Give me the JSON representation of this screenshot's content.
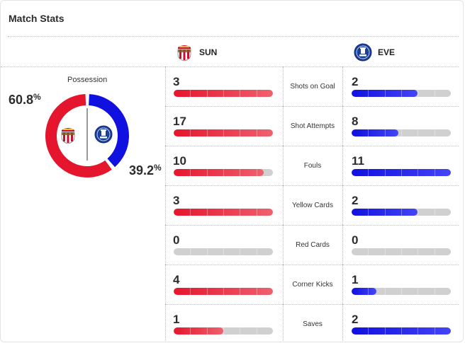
{
  "title": "Match Stats",
  "home": {
    "abbr": "SUN",
    "crest_icon": "sunderland-crest-icon",
    "possession_value": "60.8",
    "possession": 60.8,
    "color": "#e5152d"
  },
  "away": {
    "abbr": "EVE",
    "crest_icon": "everton-crest-icon",
    "possession_value": "39.2",
    "possession": 39.2,
    "color": "#1010e0"
  },
  "possession_label": "Possession",
  "percent_sign": "%",
  "stats": [
    {
      "label": "Shots on Goal",
      "home": "3",
      "away": "2",
      "home_fill": 1.0,
      "away_fill": 0.667
    },
    {
      "label": "Shot Attempts",
      "home": "17",
      "away": "8",
      "home_fill": 1.0,
      "away_fill": 0.47
    },
    {
      "label": "Fouls",
      "home": "10",
      "away": "11",
      "home_fill": 0.909,
      "away_fill": 1.0
    },
    {
      "label": "Yellow Cards",
      "home": "3",
      "away": "2",
      "home_fill": 1.0,
      "away_fill": 0.667
    },
    {
      "label": "Red Cards",
      "home": "0",
      "away": "0",
      "home_fill": 0.0,
      "away_fill": 0.0
    },
    {
      "label": "Corner Kicks",
      "home": "4",
      "away": "1",
      "home_fill": 1.0,
      "away_fill": 0.25
    },
    {
      "label": "Saves",
      "home": "1",
      "away": "2",
      "home_fill": 0.5,
      "away_fill": 1.0
    }
  ]
}
